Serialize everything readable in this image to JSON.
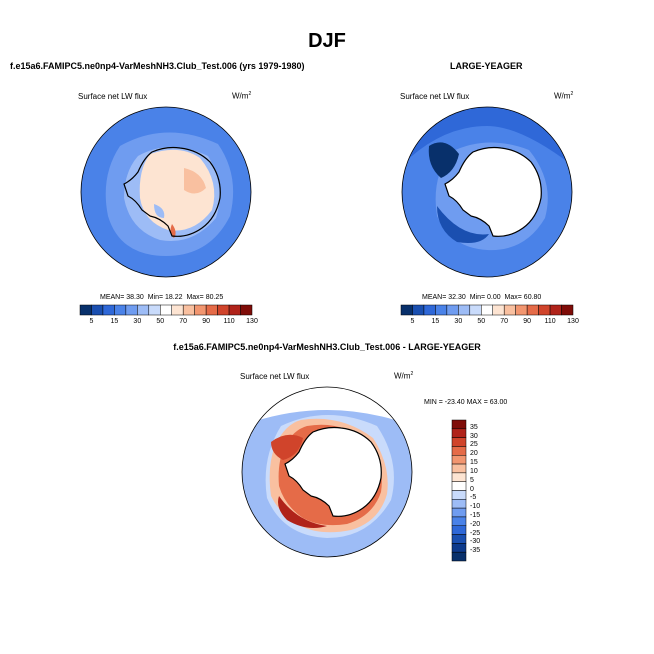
{
  "season_title": "DJF",
  "panels": {
    "model": {
      "title": "f.e15a6.FAMIPC5.ne0np4-VarMeshNH3.Club_Test.006 (yrs 1979-1980)",
      "variable": "Surface net LW flux",
      "units_base": "W/m",
      "units_exp": "2",
      "stats": {
        "mean_label": "MEAN=",
        "mean": "38.30",
        "min_label": "Min=",
        "min": "18.22",
        "max_label": "Max=",
        "max": "80.25"
      }
    },
    "obs": {
      "title": "LARGE-YEAGER",
      "variable": "Surface net LW flux",
      "units_base": "W/m",
      "units_exp": "2",
      "stats": {
        "mean_label": "MEAN=",
        "mean": "32.30",
        "min_label": "Min=",
        "min": "0.00",
        "max_label": "Max=",
        "max": "60.80"
      }
    },
    "diff": {
      "title": "f.e15a6.FAMIPC5.ne0np4-VarMeshNH3.Club_Test.006 - LARGE-YEAGER",
      "variable": "Surface net LW flux",
      "units_base": "W/m",
      "units_exp": "2",
      "minmax": "MIN = -23.40 MAX =  63.00"
    }
  },
  "colorbars": {
    "abs": {
      "labels": [
        "5",
        "15",
        "30",
        "50",
        "70",
        "90",
        "110",
        "130"
      ],
      "colors": [
        "#08306b",
        "#1a4fb0",
        "#2f68d8",
        "#4a82e8",
        "#6f9cf0",
        "#9dbcf6",
        "#c9dbfb",
        "#ffffff",
        "#fde4d2",
        "#f9c0a0",
        "#f29670",
        "#e56b48",
        "#d0442b",
        "#b0231a",
        "#7f0c08"
      ]
    },
    "diff": {
      "labels": [
        "35",
        "30",
        "25",
        "20",
        "15",
        "10",
        "5",
        "0",
        "-5",
        "-10",
        "-15",
        "-20",
        "-25",
        "-30",
        "-35"
      ],
      "colors": [
        "#7f0c08",
        "#b0231a",
        "#d0442b",
        "#e56b48",
        "#f29670",
        "#f9c0a0",
        "#fde4d2",
        "#ffffff",
        "#c9dbfb",
        "#9dbcf6",
        "#6f9cf0",
        "#4a82e8",
        "#2f68d8",
        "#1a4fb0",
        "#0d3a8c",
        "#08306b"
      ]
    }
  }
}
